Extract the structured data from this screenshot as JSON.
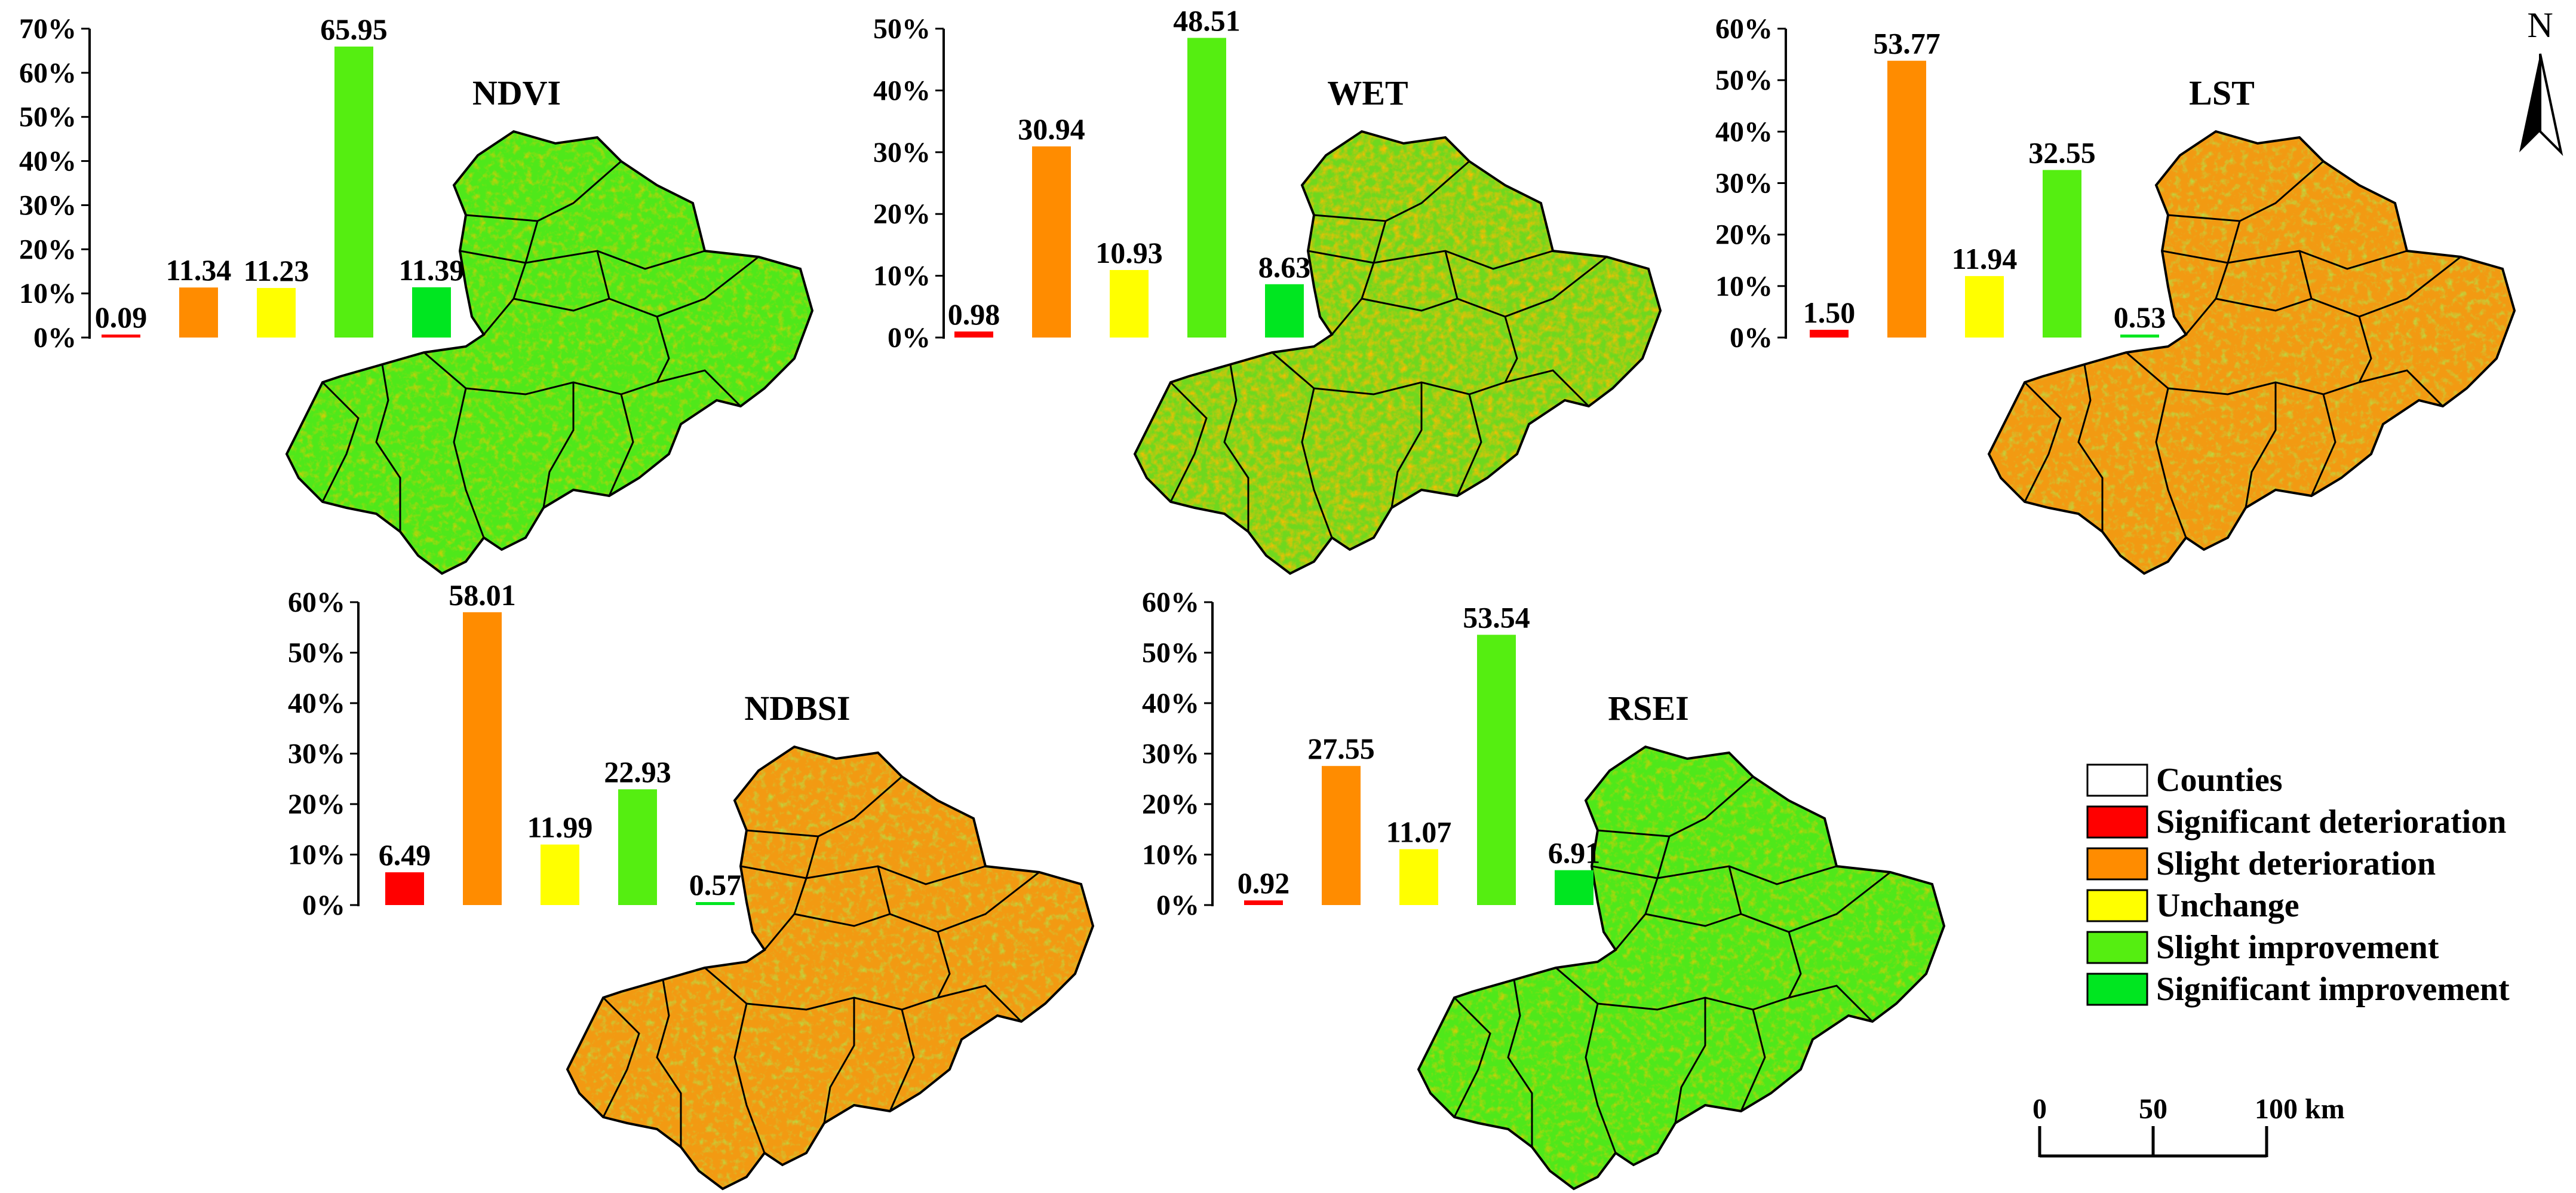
{
  "colors": {
    "significant_deterioration": "#ff0000",
    "slight_deterioration": "#ff8c00",
    "unchange": "#ffff00",
    "slight_improvement": "#55ee11",
    "significant_improvement": "#00e620",
    "counties_fill": "#ffffff"
  },
  "panels": [
    {
      "title": "NDVI",
      "map_tone": "green"
    },
    {
      "title": "WET",
      "map_tone": "mixed-green"
    },
    {
      "title": "LST",
      "map_tone": "orange"
    },
    {
      "title": "NDBSI",
      "map_tone": "orange"
    },
    {
      "title": "RSEI",
      "map_tone": "green"
    }
  ],
  "chart_data": [
    {
      "type": "bar",
      "title": "NDVI",
      "categories": [
        "Significant deterioration",
        "Slight deterioration",
        "Unchange",
        "Slight improvement",
        "Significant improvement"
      ],
      "values": [
        0.09,
        11.34,
        11.23,
        65.95,
        11.39
      ],
      "value_labels": [
        "0.09",
        "11.34",
        "11.23",
        "65.95",
        "11.39"
      ],
      "ylim": [
        0,
        70
      ],
      "yticks": [
        "0%",
        "10%",
        "20%",
        "30%",
        "40%",
        "50%",
        "60%",
        "70%"
      ]
    },
    {
      "type": "bar",
      "title": "WET",
      "categories": [
        "Significant deterioration",
        "Slight deterioration",
        "Unchange",
        "Slight improvement",
        "Significant improvement"
      ],
      "values": [
        0.98,
        30.94,
        10.93,
        48.51,
        8.63
      ],
      "value_labels": [
        "0.98",
        "30.94",
        "10.93",
        "48.51",
        "8.63"
      ],
      "ylim": [
        0,
        50
      ],
      "yticks": [
        "0%",
        "10%",
        "20%",
        "30%",
        "40%",
        "50%"
      ]
    },
    {
      "type": "bar",
      "title": "LST",
      "categories": [
        "Significant deterioration",
        "Slight deterioration",
        "Unchange",
        "Slight improvement",
        "Significant improvement"
      ],
      "values": [
        1.5,
        53.77,
        11.94,
        32.55,
        0.53
      ],
      "value_labels": [
        "1.50",
        "53.77",
        "11.94",
        "32.55",
        "0.53"
      ],
      "ylim": [
        0,
        60
      ],
      "yticks": [
        "0%",
        "10%",
        "20%",
        "30%",
        "40%",
        "50%",
        "60%"
      ]
    },
    {
      "type": "bar",
      "title": "NDBSI",
      "categories": [
        "Significant deterioration",
        "Slight deterioration",
        "Unchange",
        "Slight improvement",
        "Significant improvement"
      ],
      "values": [
        6.49,
        58.01,
        11.99,
        22.93,
        0.57
      ],
      "value_labels": [
        "6.49",
        "58.01",
        "11.99",
        "22.93",
        "0.57"
      ],
      "ylim": [
        0,
        60
      ],
      "yticks": [
        "0%",
        "10%",
        "20%",
        "30%",
        "40%",
        "50%",
        "60%"
      ]
    },
    {
      "type": "bar",
      "title": "RSEI",
      "categories": [
        "Significant deterioration",
        "Slight deterioration",
        "Unchange",
        "Slight improvement",
        "Significant improvement"
      ],
      "values": [
        0.92,
        27.55,
        11.07,
        53.54,
        6.91
      ],
      "value_labels": [
        "0.92",
        "27.55",
        "11.07",
        "53.54",
        "6.91"
      ],
      "ylim": [
        0,
        60
      ],
      "yticks": [
        "0%",
        "10%",
        "20%",
        "30%",
        "40%",
        "50%",
        "60%"
      ]
    }
  ],
  "legend": [
    {
      "label": "Counties",
      "color_key": "counties_fill"
    },
    {
      "label": "Significant deterioration",
      "color_key": "significant_deterioration"
    },
    {
      "label": "Slight deterioration",
      "color_key": "slight_deterioration"
    },
    {
      "label": "Unchange",
      "color_key": "unchange"
    },
    {
      "label": "Slight improvement",
      "color_key": "slight_improvement"
    },
    {
      "label": "Significant improvement",
      "color_key": "significant_improvement"
    }
  ],
  "scale_bar": {
    "labels": [
      "0",
      "50",
      "100 km"
    ]
  },
  "north_arrow": {
    "label": "N",
    "icon": "north-arrow-icon"
  }
}
